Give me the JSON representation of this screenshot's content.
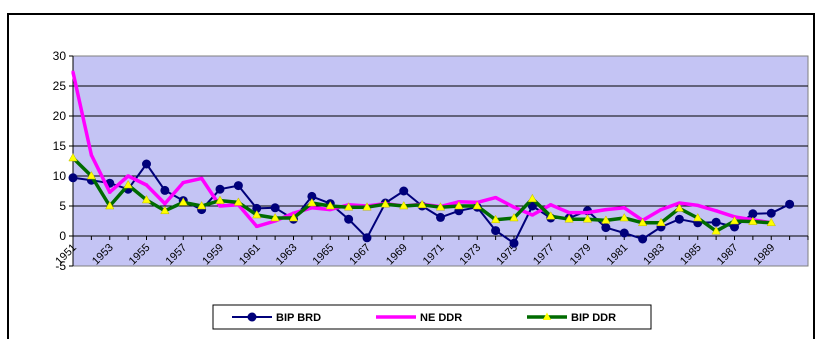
{
  "chart_data": {
    "type": "line",
    "title": "",
    "xlabel": "",
    "ylabel": "",
    "ylim": [
      -5,
      30
    ],
    "yticks": [
      -5,
      0,
      5,
      10,
      15,
      20,
      25,
      30
    ],
    "x_tick_labels": [
      "1951",
      "1953",
      "1955",
      "1957",
      "1959",
      "1961",
      "1963",
      "1965",
      "1967",
      "1969",
      "1971",
      "1973",
      "1975",
      "1977",
      "1979",
      "1981",
      "1983",
      "1985",
      "1987",
      "1989"
    ],
    "x": [
      1951,
      1952,
      1953,
      1954,
      1955,
      1956,
      1957,
      1958,
      1959,
      1960,
      1961,
      1962,
      1963,
      1964,
      1965,
      1966,
      1967,
      1968,
      1969,
      1970,
      1971,
      1972,
      1973,
      1974,
      1975,
      1976,
      1977,
      1978,
      1979,
      1980,
      1981,
      1982,
      1983,
      1984,
      1985,
      1986,
      1987,
      1988,
      1989,
      1990,
      1991
    ],
    "grid": "horizontal",
    "legend_position": "bottom",
    "plot_background": "#c4c4f4",
    "series": [
      {
        "name": "BIP BRD",
        "color": "#00007a",
        "marker": "circle",
        "values": [
          9.7,
          9.3,
          8.8,
          7.8,
          12.0,
          7.6,
          5.9,
          4.4,
          7.8,
          8.4,
          4.6,
          4.7,
          2.8,
          6.6,
          5.4,
          2.8,
          -0.3,
          5.5,
          7.5,
          5.0,
          3.1,
          4.2,
          4.8,
          0.9,
          -1.2,
          5.0,
          3.0,
          3.0,
          4.2,
          1.4,
          0.5,
          -0.5,
          1.5,
          2.8,
          2.2,
          2.3,
          1.5,
          3.7,
          3.8,
          5.3,
          null
        ]
      },
      {
        "name": "NE DDR",
        "color": "#ff00ff",
        "marker": "line",
        "values": [
          27.3,
          13.5,
          7.3,
          10.0,
          8.5,
          5.4,
          8.9,
          9.6,
          5.0,
          5.2,
          1.6,
          2.5,
          3.8,
          4.7,
          4.4,
          5.2,
          5.0,
          5.4,
          5.0,
          5.3,
          4.9,
          5.7,
          5.6,
          6.4,
          4.8,
          3.5,
          5.2,
          3.9,
          3.9,
          4.4,
          4.7,
          2.6,
          4.4,
          5.5,
          5.1,
          4.2,
          3.2,
          2.7,
          2.2,
          null,
          null
        ]
      },
      {
        "name": "BIP DDR",
        "color": "#006b00",
        "marker": "triangle",
        "values": [
          13.0,
          10.0,
          5.0,
          8.5,
          6.0,
          4.2,
          5.6,
          5.0,
          5.9,
          5.6,
          3.5,
          3.0,
          3.0,
          5.5,
          5.0,
          4.8,
          4.8,
          5.3,
          5.0,
          5.2,
          4.8,
          5.0,
          5.0,
          2.7,
          3.0,
          6.2,
          3.3,
          2.8,
          2.8,
          2.6,
          3.0,
          2.2,
          2.2,
          4.6,
          3.0,
          0.8,
          2.5,
          2.4,
          2.2,
          null,
          null
        ]
      }
    ]
  }
}
